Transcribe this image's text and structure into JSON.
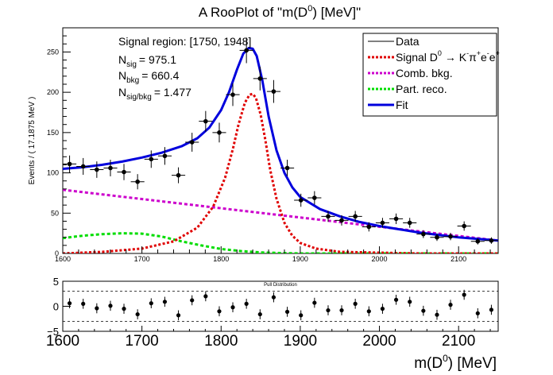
{
  "chart_data": [
    {
      "type": "scatter",
      "title": "A RooPlot of \"m(D0) [MeV]\"",
      "title_parts": {
        "prefix": "A RooPlot of \"m(D",
        "sup": "0",
        "suffix": ") [MeV]\""
      },
      "xlabel": "",
      "ylabel": "Events / ( 17.1875 MeV )",
      "xlim": [
        1600,
        2150
      ],
      "ylim": [
        0,
        280
      ],
      "x_ticks": [
        1600,
        1700,
        1800,
        1900,
        2000,
        2100
      ],
      "y_ticks": [
        0,
        50,
        100,
        150,
        200,
        250
      ],
      "bin_width": 17.1875,
      "grid": false,
      "info_text": {
        "region": "Signal region: [1750, 1948]",
        "n_sig_label": "N",
        "n_sig_sub": "sig",
        "n_sig_value": "= 975.1",
        "n_bkg_label": "N",
        "n_bkg_sub": "bkg",
        "n_bkg_value": "= 660.4",
        "ratio_label": "N",
        "ratio_sub": "sig/bkg",
        "ratio_value": "= 1.477"
      },
      "legend": {
        "placement": "top-right",
        "entries": [
          {
            "key": "data",
            "label": "Data",
            "color": "#000000",
            "style": "solid"
          },
          {
            "key": "signal",
            "label": "Signal D0 → K-π+e-e+",
            "color": "#e00000",
            "style": "dotted",
            "parts": [
              {
                "t": "Signal D"
              },
              {
                "t": "0",
                "pos": "sup"
              },
              {
                "t": " → K"
              },
              {
                "t": "-",
                "pos": "sup"
              },
              {
                "t": "π"
              },
              {
                "t": "+",
                "pos": "sup"
              },
              {
                "t": "e"
              },
              {
                "t": "-",
                "pos": "sup"
              },
              {
                "t": "e"
              },
              {
                "t": "+",
                "pos": "sup"
              }
            ]
          },
          {
            "key": "comb",
            "label": "Comb. bkg.",
            "color": "#cc00cc",
            "style": "dashed"
          },
          {
            "key": "part",
            "label": "Part. reco.",
            "color": "#00dd00",
            "style": "dashed"
          },
          {
            "key": "fit",
            "label": "Fit",
            "color": "#0000dd",
            "style": "solid"
          }
        ]
      },
      "data_points": {
        "x": [
          1608.6,
          1625.8,
          1643.0,
          1660.2,
          1677.3,
          1694.5,
          1711.7,
          1728.9,
          1746.1,
          1763.3,
          1780.5,
          1797.7,
          1814.8,
          1832.0,
          1849.2,
          1866.4,
          1883.6,
          1900.8,
          1918.0,
          1935.2,
          1952.3,
          1969.5,
          1986.7,
          2003.9,
          2021.1,
          2038.3,
          2055.5,
          2072.7,
          2089.8,
          2107.0,
          2124.2,
          2141.4
        ],
        "y": [
          111,
          108,
          104,
          106,
          101,
          89,
          117,
          121,
          97,
          138,
          164,
          150,
          197,
          252,
          217,
          201,
          106,
          66,
          69,
          46,
          41,
          46,
          33,
          38,
          43,
          38,
          24,
          20,
          21,
          34,
          15,
          16
        ]
      },
      "series": [
        {
          "key": "fit",
          "name": "Fit",
          "color": "#0000dd",
          "x": [
            1600,
            1625,
            1650,
            1675,
            1700,
            1725,
            1750,
            1770,
            1785,
            1800,
            1810,
            1820,
            1828,
            1835,
            1840,
            1845,
            1852,
            1860,
            1870,
            1880,
            1890,
            1900,
            1925,
            1950,
            1975,
            2000,
            2025,
            2050,
            2075,
            2100,
            2125,
            2150
          ],
          "y": [
            105,
            107,
            110,
            114,
            119,
            125,
            133,
            143,
            156,
            178,
            200,
            228,
            248,
            255,
            254,
            245,
            215,
            170,
            128,
            100,
            82,
            70,
            55,
            46,
            39,
            34,
            30,
            26,
            23,
            20,
            18,
            16
          ]
        },
        {
          "key": "signal",
          "name": "Signal D0 → K-π+e-e+",
          "color": "#e00000",
          "x": [
            1600,
            1650,
            1700,
            1740,
            1770,
            1790,
            1805,
            1815,
            1822,
            1830,
            1836,
            1840,
            1844,
            1850,
            1856,
            1862,
            1870,
            1880,
            1890,
            1900,
            1920,
            1950,
            2000,
            2050,
            2100,
            2150
          ],
          "y": [
            0,
            2,
            6,
            15,
            32,
            58,
            94,
            130,
            160,
            187,
            197,
            198,
            193,
            172,
            140,
            104,
            68,
            38,
            22,
            13,
            6,
            2,
            1,
            0,
            0,
            0
          ]
        },
        {
          "key": "comb",
          "name": "Comb. bkg.",
          "color": "#cc00cc",
          "x": [
            1600,
            2150
          ],
          "y": [
            79,
            16
          ]
        },
        {
          "key": "part",
          "name": "Part. reco.",
          "color": "#00dd00",
          "x": [
            1600,
            1625,
            1650,
            1675,
            1700,
            1725,
            1750,
            1775,
            1800,
            1825,
            1850,
            1875,
            1900,
            1950,
            2000,
            2050,
            2100,
            2150
          ],
          "y": [
            19,
            22,
            24,
            25,
            24.5,
            21,
            15,
            10,
            5.5,
            3,
            1.3,
            0.5,
            0,
            0,
            0,
            0,
            0,
            0
          ]
        }
      ]
    },
    {
      "type": "scatter",
      "title": "Pull Distribution",
      "xlabel": "m(D0) [MeV]",
      "xlabel_parts": {
        "prefix": "m(D",
        "sup": "0",
        "suffix": ") [MeV]"
      },
      "ylabel": "",
      "xlim": [
        1600,
        2150
      ],
      "ylim": [
        -5,
        5
      ],
      "x_ticks": [
        1600,
        1700,
        1800,
        1900,
        2000,
        2100
      ],
      "y_ticks": [
        -5,
        0,
        5
      ],
      "y_tick_labels": [
        "−5",
        "0",
        "5"
      ],
      "reference_lines": [
        -3,
        3
      ],
      "grid": false,
      "data_points": {
        "x": [
          1608.6,
          1625.8,
          1643.0,
          1660.2,
          1677.3,
          1694.5,
          1711.7,
          1728.9,
          1746.1,
          1763.3,
          1780.5,
          1797.7,
          1814.8,
          1832.0,
          1849.2,
          1866.4,
          1883.6,
          1900.8,
          1918.0,
          1935.2,
          1952.3,
          1969.5,
          1986.7,
          2003.9,
          2021.1,
          2038.3,
          2055.5,
          2072.7,
          2089.8,
          2107.0,
          2124.2,
          2141.4
        ],
        "y": [
          0.6,
          0.5,
          -0.4,
          0.1,
          -0.5,
          -1.6,
          0.6,
          0.9,
          -1.8,
          1.2,
          2.0,
          -1.0,
          -0.2,
          0.5,
          -1.6,
          1.8,
          -1.1,
          -1.8,
          0.7,
          -0.8,
          -0.8,
          0.5,
          -1.0,
          -0.5,
          1.3,
          0.9,
          -0.9,
          -1.7,
          0.3,
          2.3,
          -1.4,
          -0.7
        ]
      }
    }
  ]
}
